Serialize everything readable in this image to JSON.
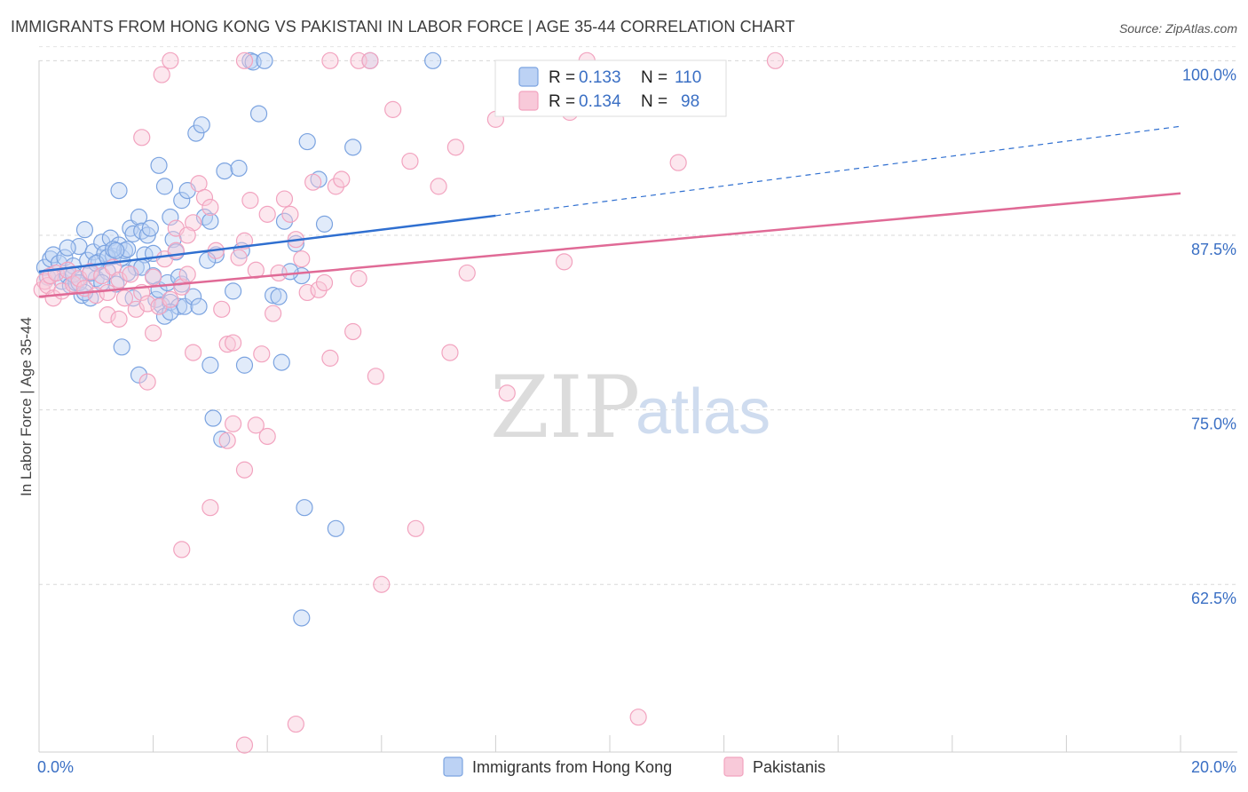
{
  "title": "IMMIGRANTS FROM HONG KONG VS PAKISTANI IN LABOR FORCE | AGE 35-44 CORRELATION CHART",
  "source": "Source: ZipAtlas.com",
  "watermark": {
    "zip": "ZIP",
    "atlas": "atlas"
  },
  "legend_top": {
    "rows": [
      {
        "r_label": "R =",
        "r_value": "0.133",
        "n_label": "N =",
        "n_value": "110"
      },
      {
        "r_label": "R =",
        "r_value": "0.134",
        "n_label": "N =",
        "n_value": "98"
      }
    ]
  },
  "chart_data": {
    "type": "scatter",
    "title": "IMMIGRANTS FROM HONG KONG VS PAKISTANI IN LABOR FORCE | AGE 35-44 CORRELATION CHART",
    "xlabel": "",
    "ylabel": "In Labor Force | Age 35-44",
    "xlim": [
      0,
      20
    ],
    "ylim": [
      50.5,
      101.8
    ],
    "x_ticks": [
      0,
      20
    ],
    "x_tick_labels": [
      "0.0%",
      "20.0%"
    ],
    "y_ticks": [
      62.5,
      75.0,
      87.5,
      100.0
    ],
    "y_tick_labels": [
      "62.5%",
      "75.0%",
      "87.5%",
      "100.0%"
    ],
    "grid": true,
    "legend": [
      "top-center",
      "bottom"
    ],
    "series": [
      {
        "name": "Immigrants from Hong Kong",
        "color": "#7ba3e0",
        "line_color": "#2f6fd0",
        "trend": {
          "x0": 0,
          "y0": 84.9,
          "x1": 8,
          "y1": 88.9,
          "dashed_to_x": 20,
          "dashed_to_y": 95.3
        },
        "points": [
          [
            0.1,
            85.2
          ],
          [
            0.15,
            84.5
          ],
          [
            0.2,
            85.8
          ],
          [
            0.25,
            86.1
          ],
          [
            0.3,
            84.8
          ],
          [
            0.35,
            85.5
          ],
          [
            0.4,
            84.2
          ],
          [
            0.45,
            85.9
          ],
          [
            0.5,
            84.6
          ],
          [
            0.55,
            83.9
          ],
          [
            0.6,
            85.3
          ],
          [
            0.65,
            84.1
          ],
          [
            0.7,
            86.7
          ],
          [
            0.75,
            83.2
          ],
          [
            0.8,
            87.9
          ],
          [
            0.85,
            85.7
          ],
          [
            0.9,
            83.0
          ],
          [
            0.95,
            86.3
          ],
          [
            1.0,
            84.4
          ],
          [
            1.05,
            85.6
          ],
          [
            1.1,
            87.0
          ],
          [
            1.15,
            86.2
          ],
          [
            1.2,
            84.9
          ],
          [
            1.25,
            87.3
          ],
          [
            1.3,
            86.0
          ],
          [
            1.35,
            84.0
          ],
          [
            1.4,
            86.8
          ],
          [
            1.45,
            85.9
          ],
          [
            1.5,
            86.4
          ],
          [
            1.55,
            86.5
          ],
          [
            1.6,
            88.0
          ],
          [
            1.65,
            87.6
          ],
          [
            1.7,
            85.2
          ],
          [
            1.75,
            88.8
          ],
          [
            1.8,
            87.8
          ],
          [
            1.85,
            86.1
          ],
          [
            1.9,
            87.5
          ],
          [
            1.95,
            88.0
          ],
          [
            2.0,
            84.6
          ],
          [
            2.05,
            82.9
          ],
          [
            2.1,
            83.6
          ],
          [
            2.15,
            82.5
          ],
          [
            2.2,
            81.7
          ],
          [
            2.25,
            84.1
          ],
          [
            2.3,
            82.7
          ],
          [
            2.35,
            87.2
          ],
          [
            2.4,
            86.3
          ],
          [
            2.45,
            82.4
          ],
          [
            2.5,
            84.0
          ],
          [
            2.55,
            82.4
          ],
          [
            1.4,
            90.7
          ],
          [
            1.45,
            79.5
          ],
          [
            1.75,
            77.5
          ],
          [
            2.1,
            92.5
          ],
          [
            2.2,
            91.0
          ],
          [
            2.3,
            88.8
          ],
          [
            2.5,
            90.0
          ],
          [
            2.6,
            90.7
          ],
          [
            2.75,
            94.8
          ],
          [
            2.85,
            95.4
          ],
          [
            2.9,
            88.8
          ],
          [
            3.0,
            88.5
          ],
          [
            3.1,
            86.1
          ],
          [
            3.25,
            92.1
          ],
          [
            3.4,
            83.5
          ],
          [
            3.5,
            92.3
          ],
          [
            3.55,
            86.4
          ],
          [
            3.6,
            78.2
          ],
          [
            3.7,
            100.0
          ],
          [
            3.75,
            99.9
          ],
          [
            3.85,
            96.2
          ],
          [
            3.95,
            100.0
          ],
          [
            4.1,
            83.2
          ],
          [
            4.2,
            83.1
          ],
          [
            4.25,
            78.4
          ],
          [
            4.3,
            88.5
          ],
          [
            4.5,
            86.9
          ],
          [
            4.6,
            84.6
          ],
          [
            4.7,
            94.2
          ],
          [
            4.9,
            91.5
          ],
          [
            5.0,
            88.3
          ],
          [
            5.5,
            93.8
          ],
          [
            5.8,
            100.0
          ],
          [
            6.9,
            100.0
          ],
          [
            3.0,
            78.2
          ],
          [
            3.05,
            74.4
          ],
          [
            3.2,
            72.9
          ],
          [
            4.65,
            68.0
          ],
          [
            5.2,
            66.5
          ],
          [
            4.6,
            60.1
          ],
          [
            0.5,
            86.6
          ],
          [
            0.6,
            84.7
          ],
          [
            0.7,
            84.1
          ],
          [
            0.8,
            83.4
          ],
          [
            0.9,
            84.8
          ],
          [
            1.0,
            85.5
          ],
          [
            1.1,
            84.1
          ],
          [
            1.2,
            85.9
          ],
          [
            1.3,
            86.5
          ],
          [
            1.35,
            86.4
          ],
          [
            1.55,
            84.8
          ],
          [
            1.65,
            83.0
          ],
          [
            1.8,
            85.2
          ],
          [
            2.0,
            86.2
          ],
          [
            2.3,
            82.0
          ],
          [
            2.45,
            84.5
          ],
          [
            2.7,
            83.1
          ],
          [
            2.8,
            82.4
          ],
          [
            2.95,
            85.7
          ],
          [
            4.4,
            84.9
          ]
        ]
      },
      {
        "name": "Pakistanis",
        "color": "#f2a3bf",
        "line_color": "#e06a96",
        "trend": {
          "x0": 0,
          "y0": 83.1,
          "x1": 20,
          "y1": 90.5
        },
        "points": [
          [
            0.05,
            83.6
          ],
          [
            0.1,
            84.2
          ],
          [
            0.15,
            83.9
          ],
          [
            0.2,
            84.6
          ],
          [
            0.25,
            83.0
          ],
          [
            0.3,
            84.8
          ],
          [
            0.4,
            83.5
          ],
          [
            0.5,
            85.0
          ],
          [
            0.6,
            84.0
          ],
          [
            0.7,
            84.4
          ],
          [
            0.8,
            83.7
          ],
          [
            0.9,
            84.9
          ],
          [
            1.0,
            83.2
          ],
          [
            1.1,
            84.6
          ],
          [
            1.2,
            83.4
          ],
          [
            1.3,
            85.2
          ],
          [
            1.4,
            84.3
          ],
          [
            1.5,
            83.0
          ],
          [
            1.6,
            84.7
          ],
          [
            1.7,
            82.2
          ],
          [
            1.8,
            83.4
          ],
          [
            1.9,
            82.6
          ],
          [
            2.0,
            84.5
          ],
          [
            2.1,
            82.4
          ],
          [
            2.2,
            85.8
          ],
          [
            2.3,
            82.9
          ],
          [
            2.4,
            86.4
          ],
          [
            2.5,
            83.8
          ],
          [
            2.6,
            84.7
          ],
          [
            2.7,
            88.4
          ],
          [
            2.8,
            91.2
          ],
          [
            2.9,
            90.2
          ],
          [
            3.0,
            89.5
          ],
          [
            3.1,
            86.4
          ],
          [
            3.2,
            82.2
          ],
          [
            3.3,
            79.7
          ],
          [
            3.4,
            79.8
          ],
          [
            3.5,
            85.9
          ],
          [
            3.6,
            87.1
          ],
          [
            3.7,
            90.0
          ],
          [
            3.8,
            85.0
          ],
          [
            3.9,
            79.0
          ],
          [
            4.0,
            89.0
          ],
          [
            4.1,
            81.9
          ],
          [
            4.2,
            84.8
          ],
          [
            4.3,
            90.1
          ],
          [
            4.4,
            89.0
          ],
          [
            4.5,
            87.2
          ],
          [
            4.6,
            85.8
          ],
          [
            4.7,
            83.4
          ],
          [
            4.8,
            91.3
          ],
          [
            4.9,
            83.6
          ],
          [
            5.0,
            84.1
          ],
          [
            5.1,
            78.7
          ],
          [
            5.2,
            91.0
          ],
          [
            5.3,
            91.5
          ],
          [
            5.5,
            80.6
          ],
          [
            5.6,
            84.4
          ],
          [
            5.9,
            77.4
          ],
          [
            6.2,
            96.5
          ],
          [
            6.5,
            92.8
          ],
          [
            7.0,
            91.0
          ],
          [
            7.2,
            79.1
          ],
          [
            7.5,
            84.8
          ],
          [
            6.6,
            66.5
          ],
          [
            7.3,
            93.8
          ],
          [
            8.0,
            95.8
          ],
          [
            8.2,
            76.2
          ],
          [
            9.2,
            85.6
          ],
          [
            9.3,
            96.3
          ],
          [
            9.6,
            100.0
          ],
          [
            10.5,
            53.0
          ],
          [
            11.2,
            92.7
          ],
          [
            12.9,
            100.0
          ],
          [
            2.15,
            99.0
          ],
          [
            2.3,
            100.0
          ],
          [
            3.6,
            100.0
          ],
          [
            5.1,
            100.0
          ],
          [
            5.6,
            100.0
          ],
          [
            5.8,
            100.0
          ],
          [
            1.2,
            81.8
          ],
          [
            1.4,
            81.5
          ],
          [
            1.8,
            94.5
          ],
          [
            1.9,
            77.0
          ],
          [
            2.0,
            80.5
          ],
          [
            2.4,
            88.0
          ],
          [
            2.6,
            87.5
          ],
          [
            2.7,
            79.1
          ],
          [
            3.0,
            68.0
          ],
          [
            3.3,
            72.8
          ],
          [
            3.4,
            74.0
          ],
          [
            3.6,
            70.7
          ],
          [
            3.8,
            73.9
          ],
          [
            4.0,
            73.1
          ],
          [
            2.5,
            65.0
          ],
          [
            6.0,
            62.5
          ],
          [
            3.6,
            51.0
          ],
          [
            4.5,
            52.5
          ]
        ]
      }
    ]
  }
}
